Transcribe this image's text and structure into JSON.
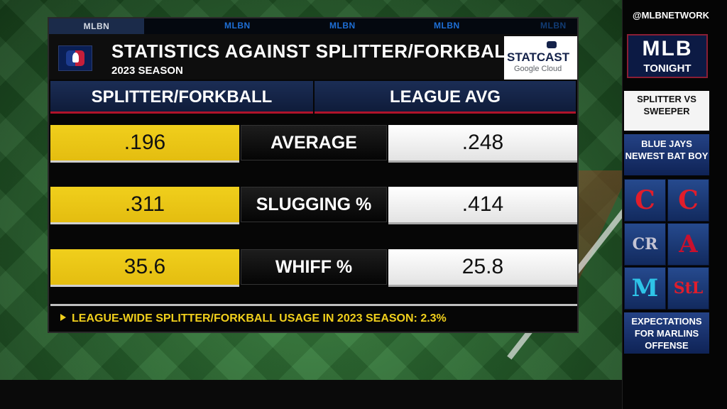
{
  "top_tabs": [
    "MLBN",
    "MLBN",
    "MLBN",
    "MLBN",
    "MLBN"
  ],
  "title": "STATISTICS AGAINST SPLITTER/FORKBALL",
  "subtitle": "2023 SEASON",
  "statcast": {
    "brand": "STATCAST",
    "sub": "Google Cloud"
  },
  "columns": {
    "left": "SPLITTER/FORKBALL",
    "right": "LEAGUE AVG"
  },
  "rows": [
    {
      "stat": "AVERAGE",
      "splitter": ".196",
      "league": ".248"
    },
    {
      "stat": "SLUGGING %",
      "splitter": ".311",
      "league": ".414"
    },
    {
      "stat": "WHIFF %",
      "splitter": "35.6",
      "league": "25.8"
    }
  ],
  "footer": "LEAGUE-WIDE SPLITTER/FORKBALL USAGE IN 2023 SEASON: 2.3%",
  "sidebar": {
    "handle": "@MLBNETWORK",
    "show_line1": "MLB",
    "show_line2": "TONIGHT",
    "items": [
      "SPLITTER VS SWEEPER",
      "BLUE JAYS NEWEST BAT BOY",
      "EXPECTATIONS FOR MARLINS OFFENSE"
    ],
    "team_logos": [
      {
        "name": "reds",
        "glyph": "C",
        "color": "#e11d2b"
      },
      {
        "name": "guardians",
        "glyph": "C",
        "color": "#e11d2b"
      },
      {
        "name": "rockies",
        "glyph": "CR",
        "color": "#c4c4d4"
      },
      {
        "name": "diamondbacks",
        "glyph": "A",
        "color": "#c8102e"
      },
      {
        "name": "marlins",
        "glyph": "M",
        "color": "#2ec4e8"
      },
      {
        "name": "cardinals",
        "glyph": "StL",
        "color": "#e11d2b"
      }
    ]
  }
}
